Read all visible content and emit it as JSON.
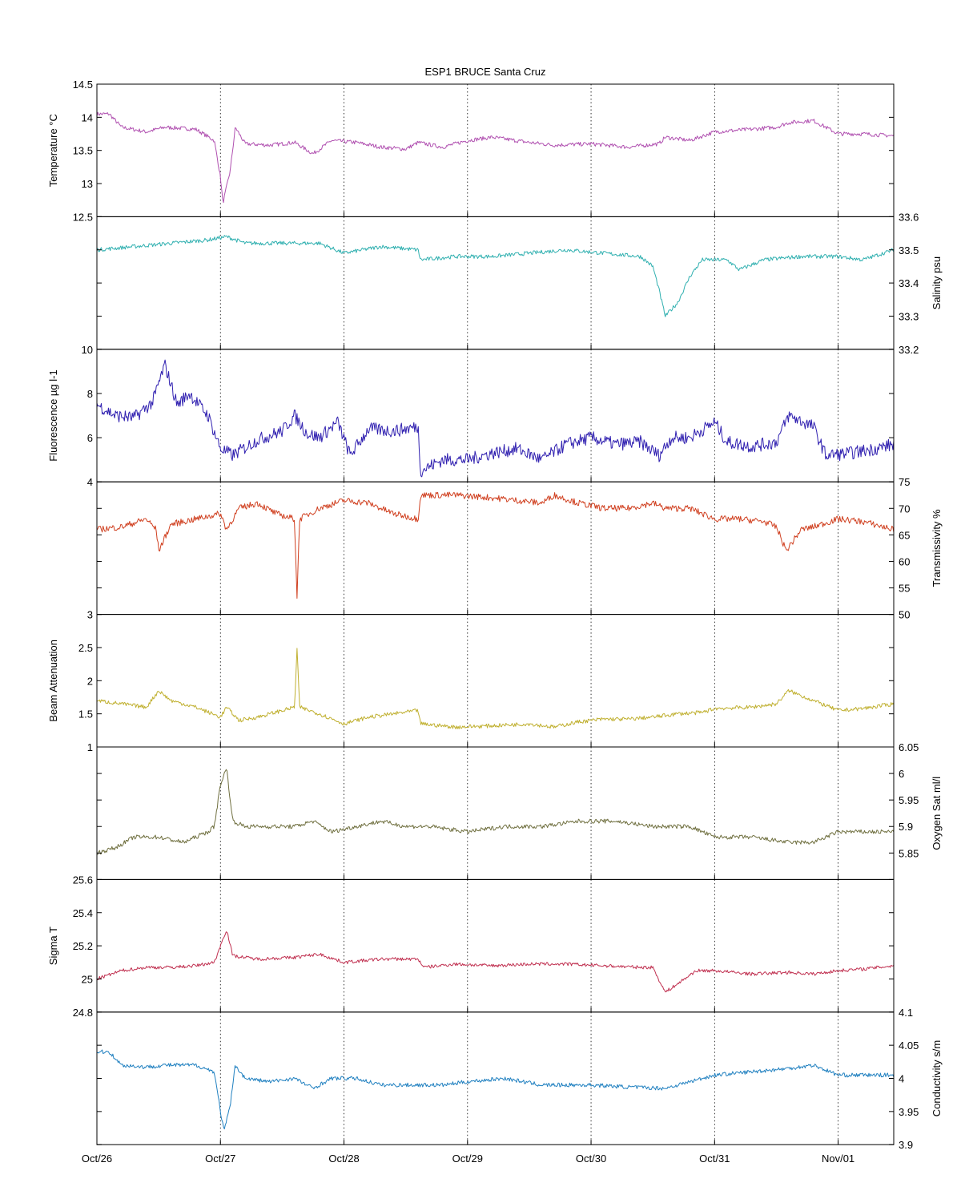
{
  "figure": {
    "title": "ESP1 BRUCE Santa Cruz",
    "x_range_days": [
      0,
      6.45
    ],
    "x_ticks": [
      {
        "day": 0,
        "label": "Oct/26"
      },
      {
        "day": 1,
        "label": "Oct/27"
      },
      {
        "day": 2,
        "label": "Oct/28"
      },
      {
        "day": 3,
        "label": "Oct/29"
      },
      {
        "day": 4,
        "label": "Oct/30"
      },
      {
        "day": 5,
        "label": "Oct/31"
      },
      {
        "day": 6,
        "label": "Nov/01"
      }
    ]
  },
  "chart_data": [
    {
      "type": "line",
      "name": "temperature",
      "ylabel": "Temperature °C",
      "axis_side": "left",
      "ylim": [
        12.5,
        14.5
      ],
      "yticks": [
        "12.5",
        "13",
        "13.5",
        "14",
        "14.5"
      ],
      "color": "#b050b0",
      "noise": 0.03,
      "points": [
        [
          0,
          14.05
        ],
        [
          0.1,
          14.05
        ],
        [
          0.2,
          13.85
        ],
        [
          0.4,
          13.78
        ],
        [
          0.55,
          13.85
        ],
        [
          0.8,
          13.82
        ],
        [
          0.95,
          13.65
        ],
        [
          1.0,
          13.1
        ],
        [
          1.02,
          12.7
        ],
        [
          1.08,
          13.2
        ],
        [
          1.12,
          13.85
        ],
        [
          1.2,
          13.6
        ],
        [
          1.4,
          13.58
        ],
        [
          1.6,
          13.62
        ],
        [
          1.75,
          13.45
        ],
        [
          1.9,
          13.65
        ],
        [
          2.1,
          13.62
        ],
        [
          2.3,
          13.55
        ],
        [
          2.5,
          13.52
        ],
        [
          2.6,
          13.62
        ],
        [
          2.8,
          13.55
        ],
        [
          3.0,
          13.65
        ],
        [
          3.2,
          13.7
        ],
        [
          3.5,
          13.62
        ],
        [
          3.7,
          13.58
        ],
        [
          4.0,
          13.6
        ],
        [
          4.3,
          13.55
        ],
        [
          4.55,
          13.6
        ],
        [
          4.6,
          13.7
        ],
        [
          4.8,
          13.65
        ],
        [
          5.0,
          13.78
        ],
        [
          5.3,
          13.82
        ],
        [
          5.5,
          13.85
        ],
        [
          5.6,
          13.92
        ],
        [
          5.8,
          13.95
        ],
        [
          6.0,
          13.75
        ],
        [
          6.2,
          13.75
        ],
        [
          6.45,
          13.72
        ]
      ]
    },
    {
      "type": "line",
      "name": "salinity",
      "ylabel": "Salinity psu",
      "axis_side": "right",
      "ylim": [
        33.2,
        33.6
      ],
      "yticks": [
        "33.2",
        "33.3",
        "33.4",
        "33.5",
        "33.6"
      ],
      "color": "#30b0b0",
      "noise": 0.006,
      "points": [
        [
          0,
          33.5
        ],
        [
          0.3,
          33.51
        ],
        [
          0.6,
          33.52
        ],
        [
          0.9,
          33.53
        ],
        [
          1.05,
          33.54
        ],
        [
          1.2,
          33.52
        ],
        [
          1.5,
          33.52
        ],
        [
          1.8,
          33.52
        ],
        [
          2.0,
          33.49
        ],
        [
          2.3,
          33.51
        ],
        [
          2.6,
          33.5
        ],
        [
          2.62,
          33.47
        ],
        [
          2.9,
          33.48
        ],
        [
          3.2,
          33.48
        ],
        [
          3.5,
          33.49
        ],
        [
          3.8,
          33.5
        ],
        [
          4.1,
          33.49
        ],
        [
          4.4,
          33.48
        ],
        [
          4.5,
          33.45
        ],
        [
          4.55,
          33.38
        ],
        [
          4.6,
          33.3
        ],
        [
          4.7,
          33.34
        ],
        [
          4.8,
          33.42
        ],
        [
          4.9,
          33.47
        ],
        [
          5.1,
          33.47
        ],
        [
          5.2,
          33.44
        ],
        [
          5.4,
          33.47
        ],
        [
          5.7,
          33.48
        ],
        [
          6.0,
          33.48
        ],
        [
          6.2,
          33.47
        ],
        [
          6.45,
          33.5
        ]
      ]
    },
    {
      "type": "line",
      "name": "fluorescence",
      "ylabel": "Fluorescence µg l-1",
      "axis_side": "left",
      "ylim": [
        4,
        10
      ],
      "yticks": [
        "4",
        "6",
        "8",
        "10"
      ],
      "color": "#3020b0",
      "noise": 0.3,
      "points": [
        [
          0,
          7.5
        ],
        [
          0.15,
          7.0
        ],
        [
          0.3,
          6.9
        ],
        [
          0.45,
          7.6
        ],
        [
          0.55,
          9.3
        ],
        [
          0.65,
          7.5
        ],
        [
          0.75,
          8.0
        ],
        [
          0.9,
          7.0
        ],
        [
          1.0,
          5.5
        ],
        [
          1.1,
          5.2
        ],
        [
          1.3,
          5.9
        ],
        [
          1.5,
          6.3
        ],
        [
          1.6,
          7.0
        ],
        [
          1.7,
          6.2
        ],
        [
          1.8,
          6.0
        ],
        [
          1.95,
          6.7
        ],
        [
          2.05,
          5.2
        ],
        [
          2.2,
          6.4
        ],
        [
          2.4,
          6.3
        ],
        [
          2.6,
          6.5
        ],
        [
          2.62,
          4.5
        ],
        [
          2.8,
          5.0
        ],
        [
          3.0,
          5.0
        ],
        [
          3.2,
          5.3
        ],
        [
          3.4,
          5.5
        ],
        [
          3.6,
          5.0
        ],
        [
          3.8,
          5.7
        ],
        [
          4.0,
          6.0
        ],
        [
          4.2,
          5.7
        ],
        [
          4.4,
          5.8
        ],
        [
          4.55,
          5.2
        ],
        [
          4.65,
          6.0
        ],
        [
          4.8,
          6.0
        ],
        [
          5.0,
          6.7
        ],
        [
          5.1,
          5.8
        ],
        [
          5.3,
          5.6
        ],
        [
          5.5,
          5.8
        ],
        [
          5.6,
          7.0
        ],
        [
          5.8,
          6.5
        ],
        [
          5.9,
          5.2
        ],
        [
          6.1,
          5.3
        ],
        [
          6.3,
          5.5
        ],
        [
          6.45,
          5.7
        ]
      ]
    },
    {
      "type": "line",
      "name": "transmissivity",
      "ylabel": "Transmissivity %",
      "axis_side": "right",
      "ylim": [
        50,
        75
      ],
      "yticks": [
        "50",
        "55",
        "60",
        "65",
        "70",
        "75"
      ],
      "color": "#d04020",
      "noise": 0.6,
      "points": [
        [
          0,
          66
        ],
        [
          0.2,
          66.5
        ],
        [
          0.4,
          68
        ],
        [
          0.48,
          66
        ],
        [
          0.5,
          62
        ],
        [
          0.6,
          67
        ],
        [
          0.8,
          68
        ],
        [
          1.0,
          69
        ],
        [
          1.05,
          66
        ],
        [
          1.15,
          70
        ],
        [
          1.3,
          71
        ],
        [
          1.45,
          69
        ],
        [
          1.6,
          68
        ],
        [
          1.62,
          53
        ],
        [
          1.64,
          68
        ],
        [
          1.8,
          70
        ],
        [
          2.0,
          71.5
        ],
        [
          2.2,
          71
        ],
        [
          2.4,
          69
        ],
        [
          2.6,
          68
        ],
        [
          2.62,
          72.5
        ],
        [
          2.9,
          72.5
        ],
        [
          3.2,
          72
        ],
        [
          3.4,
          71.5
        ],
        [
          3.6,
          71
        ],
        [
          3.7,
          72.5
        ],
        [
          3.9,
          71
        ],
        [
          4.1,
          70
        ],
        [
          4.3,
          70
        ],
        [
          4.5,
          71
        ],
        [
          4.6,
          70
        ],
        [
          4.8,
          70
        ],
        [
          5.0,
          68
        ],
        [
          5.2,
          68
        ],
        [
          5.4,
          67.5
        ],
        [
          5.5,
          66.5
        ],
        [
          5.58,
          62
        ],
        [
          5.7,
          66
        ],
        [
          5.8,
          66.5
        ],
        [
          6.0,
          68
        ],
        [
          6.2,
          67.5
        ],
        [
          6.45,
          66
        ]
      ]
    },
    {
      "type": "line",
      "name": "beam_attenuation",
      "ylabel": "Beam Attenuation",
      "axis_side": "left",
      "ylim": [
        1,
        3
      ],
      "yticks": [
        "1",
        "1.5",
        "2",
        "2.5",
        "3"
      ],
      "color": "#c0b030",
      "noise": 0.03,
      "points": [
        [
          0,
          1.7
        ],
        [
          0.2,
          1.65
        ],
        [
          0.4,
          1.6
        ],
        [
          0.5,
          1.85
        ],
        [
          0.6,
          1.7
        ],
        [
          0.8,
          1.6
        ],
        [
          1.0,
          1.45
        ],
        [
          1.05,
          1.6
        ],
        [
          1.15,
          1.4
        ],
        [
          1.3,
          1.45
        ],
        [
          1.5,
          1.55
        ],
        [
          1.6,
          1.6
        ],
        [
          1.62,
          2.5
        ],
        [
          1.64,
          1.6
        ],
        [
          1.8,
          1.5
        ],
        [
          2.0,
          1.35
        ],
        [
          2.2,
          1.45
        ],
        [
          2.4,
          1.5
        ],
        [
          2.6,
          1.55
        ],
        [
          2.62,
          1.35
        ],
        [
          2.9,
          1.3
        ],
        [
          3.2,
          1.32
        ],
        [
          3.5,
          1.35
        ],
        [
          3.7,
          1.3
        ],
        [
          3.9,
          1.38
        ],
        [
          4.1,
          1.42
        ],
        [
          4.3,
          1.42
        ],
        [
          4.5,
          1.45
        ],
        [
          4.7,
          1.5
        ],
        [
          4.9,
          1.52
        ],
        [
          5.0,
          1.58
        ],
        [
          5.3,
          1.6
        ],
        [
          5.5,
          1.65
        ],
        [
          5.6,
          1.85
        ],
        [
          5.8,
          1.7
        ],
        [
          6.0,
          1.55
        ],
        [
          6.2,
          1.58
        ],
        [
          6.45,
          1.65
        ]
      ]
    },
    {
      "type": "line",
      "name": "oxygen_sat",
      "ylabel": "Oxygen Sat ml/l",
      "axis_side": "right",
      "ylim": [
        5.8,
        6.05
      ],
      "yticks": [
        "5.85",
        "5.9",
        "5.95",
        "6",
        "6.05"
      ],
      "color": "#707040",
      "noise": 0.004,
      "points": [
        [
          0,
          5.85
        ],
        [
          0.15,
          5.86
        ],
        [
          0.3,
          5.88
        ],
        [
          0.5,
          5.88
        ],
        [
          0.7,
          5.87
        ],
        [
          0.9,
          5.89
        ],
        [
          0.95,
          5.9
        ],
        [
          1.0,
          5.98
        ],
        [
          1.05,
          6.01
        ],
        [
          1.1,
          5.91
        ],
        [
          1.2,
          5.9
        ],
        [
          1.4,
          5.9
        ],
        [
          1.6,
          5.9
        ],
        [
          1.75,
          5.91
        ],
        [
          1.9,
          5.89
        ],
        [
          2.1,
          5.9
        ],
        [
          2.3,
          5.91
        ],
        [
          2.5,
          5.9
        ],
        [
          2.7,
          5.9
        ],
        [
          3.0,
          5.89
        ],
        [
          3.3,
          5.9
        ],
        [
          3.6,
          5.9
        ],
        [
          3.9,
          5.91
        ],
        [
          4.2,
          5.91
        ],
        [
          4.5,
          5.9
        ],
        [
          4.8,
          5.9
        ],
        [
          5.0,
          5.88
        ],
        [
          5.3,
          5.88
        ],
        [
          5.6,
          5.87
        ],
        [
          5.8,
          5.87
        ],
        [
          6.0,
          5.89
        ],
        [
          6.2,
          5.89
        ],
        [
          6.45,
          5.89
        ]
      ]
    },
    {
      "type": "line",
      "name": "sigma_t",
      "ylabel": "Sigma T",
      "axis_side": "left",
      "ylim": [
        24.8,
        25.6
      ],
      "yticks": [
        "24.8",
        "25",
        "25.2",
        "25.4",
        "25.6"
      ],
      "color": "#c03050",
      "noise": 0.01,
      "points": [
        [
          0,
          25.0
        ],
        [
          0.2,
          25.05
        ],
        [
          0.4,
          25.07
        ],
        [
          0.6,
          25.07
        ],
        [
          0.8,
          25.08
        ],
        [
          0.95,
          25.1
        ],
        [
          1.05,
          25.3
        ],
        [
          1.1,
          25.14
        ],
        [
          1.3,
          25.12
        ],
        [
          1.6,
          25.13
        ],
        [
          1.8,
          25.15
        ],
        [
          2.0,
          25.1
        ],
        [
          2.3,
          25.12
        ],
        [
          2.6,
          25.12
        ],
        [
          2.65,
          25.07
        ],
        [
          2.9,
          25.09
        ],
        [
          3.2,
          25.08
        ],
        [
          3.5,
          25.09
        ],
        [
          3.8,
          25.09
        ],
        [
          4.1,
          25.08
        ],
        [
          4.4,
          25.07
        ],
        [
          4.5,
          25.07
        ],
        [
          4.6,
          24.92
        ],
        [
          4.7,
          24.97
        ],
        [
          4.85,
          25.05
        ],
        [
          5.0,
          25.05
        ],
        [
          5.3,
          25.03
        ],
        [
          5.6,
          25.04
        ],
        [
          5.8,
          25.03
        ],
        [
          6.0,
          25.05
        ],
        [
          6.2,
          25.06
        ],
        [
          6.45,
          25.08
        ]
      ]
    },
    {
      "type": "line",
      "name": "conductivity",
      "ylabel": "Conductivity s/m",
      "axis_side": "right",
      "ylim": [
        3.9,
        4.1
      ],
      "yticks": [
        "3.9",
        "3.95",
        "4",
        "4.05",
        "4.1"
      ],
      "color": "#2080c0",
      "noise": 0.003,
      "points": [
        [
          0,
          4.04
        ],
        [
          0.1,
          4.04
        ],
        [
          0.2,
          4.02
        ],
        [
          0.4,
          4.017
        ],
        [
          0.55,
          4.02
        ],
        [
          0.8,
          4.02
        ],
        [
          0.95,
          4.01
        ],
        [
          1.0,
          3.95
        ],
        [
          1.03,
          3.92
        ],
        [
          1.08,
          3.96
        ],
        [
          1.12,
          4.02
        ],
        [
          1.2,
          4.0
        ],
        [
          1.4,
          3.995
        ],
        [
          1.6,
          4.0
        ],
        [
          1.75,
          3.985
        ],
        [
          1.9,
          4.0
        ],
        [
          2.1,
          4.0
        ],
        [
          2.3,
          3.99
        ],
        [
          2.6,
          3.99
        ],
        [
          2.8,
          3.99
        ],
        [
          3.0,
          3.995
        ],
        [
          3.3,
          4.0
        ],
        [
          3.6,
          3.99
        ],
        [
          4.0,
          3.99
        ],
        [
          4.3,
          3.987
        ],
        [
          4.6,
          3.985
        ],
        [
          4.8,
          3.995
        ],
        [
          5.0,
          4.005
        ],
        [
          5.3,
          4.01
        ],
        [
          5.6,
          4.015
        ],
        [
          5.8,
          4.02
        ],
        [
          6.0,
          4.005
        ],
        [
          6.2,
          4.005
        ],
        [
          6.45,
          4.005
        ]
      ]
    }
  ]
}
